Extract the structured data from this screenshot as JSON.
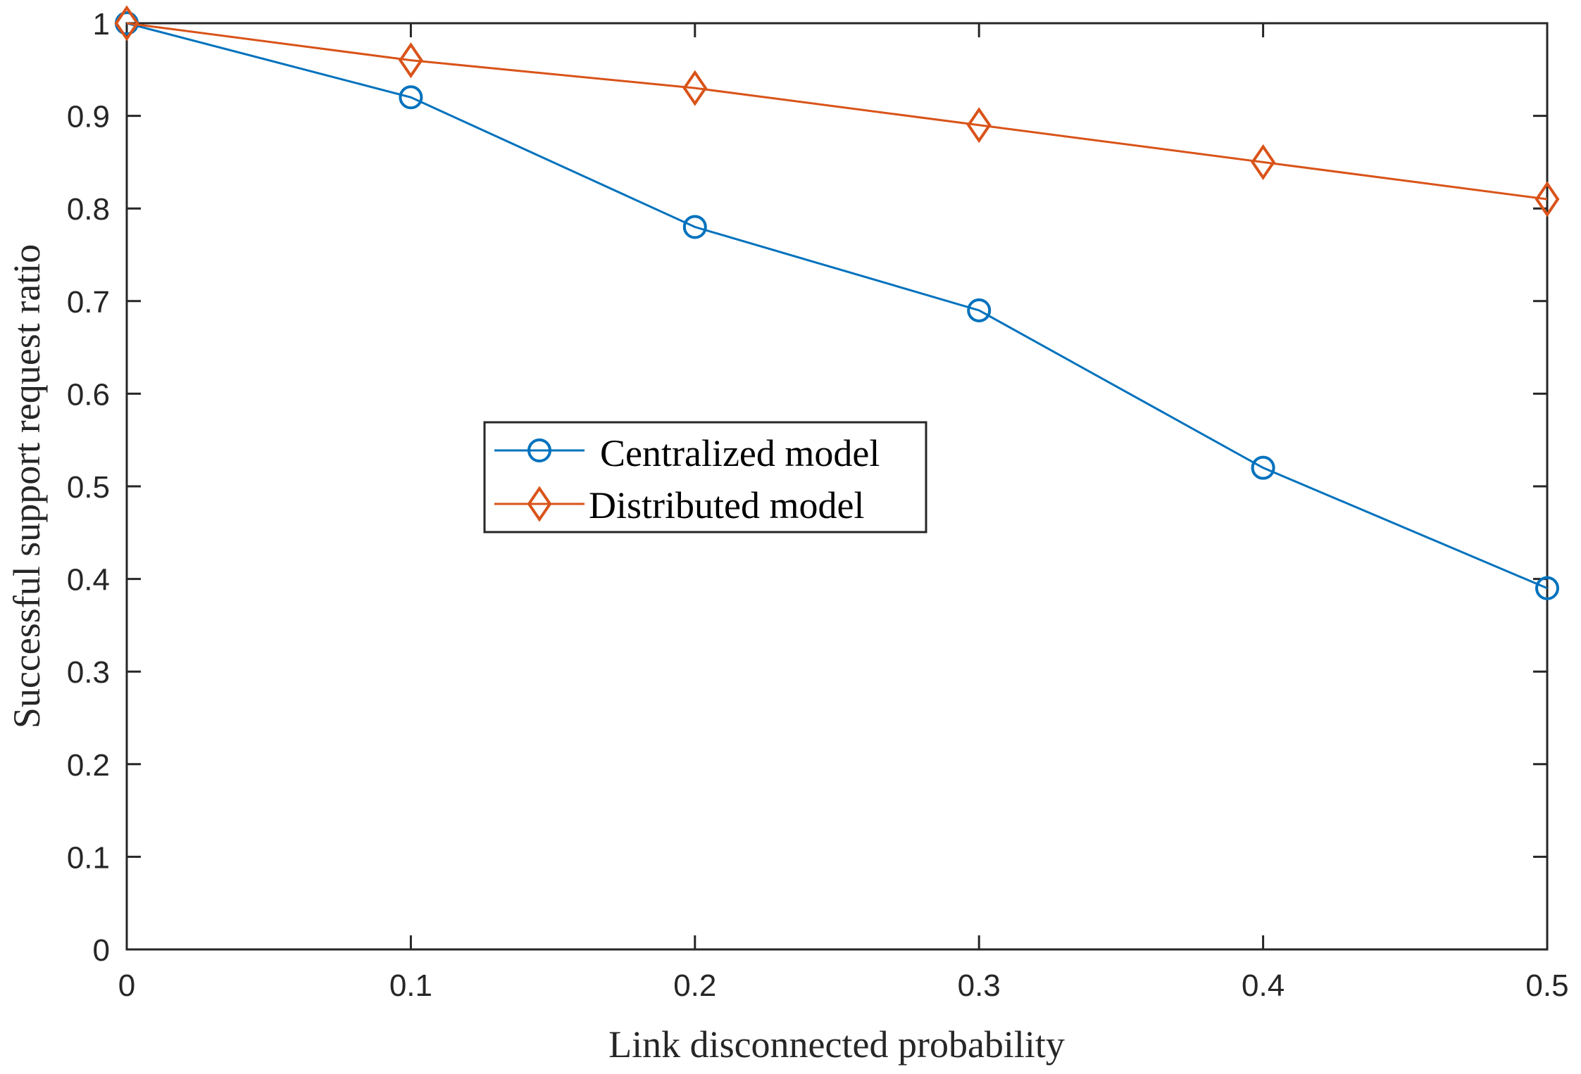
{
  "chart_data": {
    "type": "line",
    "title": "",
    "xlabel": "Link disconnected probability",
    "ylabel": "Successful support request ratio",
    "xlim": [
      0,
      0.5
    ],
    "ylim": [
      0,
      1
    ],
    "xticks": [
      0,
      0.1,
      0.2,
      0.3,
      0.4,
      0.5
    ],
    "xtick_labels": [
      "0",
      "0.1",
      "0.2",
      "0.3",
      "0.4",
      "0.5"
    ],
    "yticks": [
      0,
      0.1,
      0.2,
      0.3,
      0.4,
      0.5,
      0.6,
      0.7,
      0.8,
      0.9,
      1
    ],
    "ytick_labels": [
      "0",
      "0.1",
      "0.2",
      "0.3",
      "0.4",
      "0.5",
      "0.6",
      "0.7",
      "0.8",
      "0.9",
      "1"
    ],
    "grid": false,
    "legend_position": "center",
    "x": [
      0,
      0.1,
      0.2,
      0.3,
      0.4,
      0.5
    ],
    "series": [
      {
        "name": "Centralized model",
        "values": [
          1.0,
          0.92,
          0.78,
          0.69,
          0.52,
          0.39
        ],
        "color": "#0072BD",
        "marker": "circle"
      },
      {
        "name": "Distributed model",
        "values": [
          1.0,
          0.96,
          0.93,
          0.89,
          0.85,
          0.81
        ],
        "color": "#D95319",
        "marker": "diamond"
      }
    ]
  }
}
